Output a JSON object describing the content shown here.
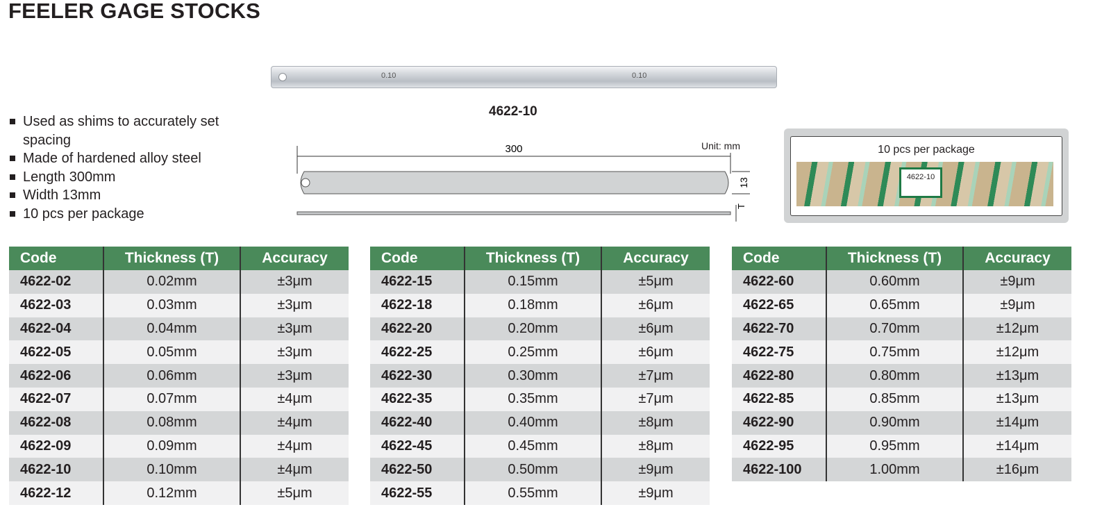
{
  "title": "FEELER GAGE STOCKS",
  "features": [
    "Used as shims to accurately set spacing",
    "Made of hardened alloy steel",
    "Length 300mm",
    "Width 13mm",
    "10 pcs per package"
  ],
  "photo": {
    "marking": "0.10",
    "caption": "4622-10"
  },
  "drawing": {
    "unit": "Unit: mm",
    "length": "300",
    "width": "13",
    "thickness": "T"
  },
  "package": {
    "label": "10 pcs per package",
    "tag": "4622-10"
  },
  "colors": {
    "header": "#4a8a5a",
    "row_dark": "#d4d6d7",
    "row_light": "#f1f1f2"
  },
  "table_headers": [
    "Code",
    "Thickness (T)",
    "Accuracy"
  ],
  "tables": [
    [
      [
        "4622-02",
        "0.02mm",
        "±3μm"
      ],
      [
        "4622-03",
        "0.03mm",
        "±3μm"
      ],
      [
        "4622-04",
        "0.04mm",
        "±3μm"
      ],
      [
        "4622-05",
        "0.05mm",
        "±3μm"
      ],
      [
        "4622-06",
        "0.06mm",
        "±3μm"
      ],
      [
        "4622-07",
        "0.07mm",
        "±4μm"
      ],
      [
        "4622-08",
        "0.08mm",
        "±4μm"
      ],
      [
        "4622-09",
        "0.09mm",
        "±4μm"
      ],
      [
        "4622-10",
        "0.10mm",
        "±4μm"
      ],
      [
        "4622-12",
        "0.12mm",
        "±5μm"
      ]
    ],
    [
      [
        "4622-15",
        "0.15mm",
        "±5μm"
      ],
      [
        "4622-18",
        "0.18mm",
        "±6μm"
      ],
      [
        "4622-20",
        "0.20mm",
        "±6μm"
      ],
      [
        "4622-25",
        "0.25mm",
        "±6μm"
      ],
      [
        "4622-30",
        "0.30mm",
        "±7μm"
      ],
      [
        "4622-35",
        "0.35mm",
        "±7μm"
      ],
      [
        "4622-40",
        "0.40mm",
        "±8μm"
      ],
      [
        "4622-45",
        "0.45mm",
        "±8μm"
      ],
      [
        "4622-50",
        "0.50mm",
        "±9μm"
      ],
      [
        "4622-55",
        "0.55mm",
        "±9μm"
      ]
    ],
    [
      [
        "4622-60",
        "0.60mm",
        "±9μm"
      ],
      [
        "4622-65",
        "0.65mm",
        "±9μm"
      ],
      [
        "4622-70",
        "0.70mm",
        "±12μm"
      ],
      [
        "4622-75",
        "0.75mm",
        "±12μm"
      ],
      [
        "4622-80",
        "0.80mm",
        "±13μm"
      ],
      [
        "4622-85",
        "0.85mm",
        "±13μm"
      ],
      [
        "4622-90",
        "0.90mm",
        "±14μm"
      ],
      [
        "4622-95",
        "0.95mm",
        "±14μm"
      ],
      [
        "4622-100",
        "1.00mm",
        "±16μm"
      ]
    ]
  ]
}
